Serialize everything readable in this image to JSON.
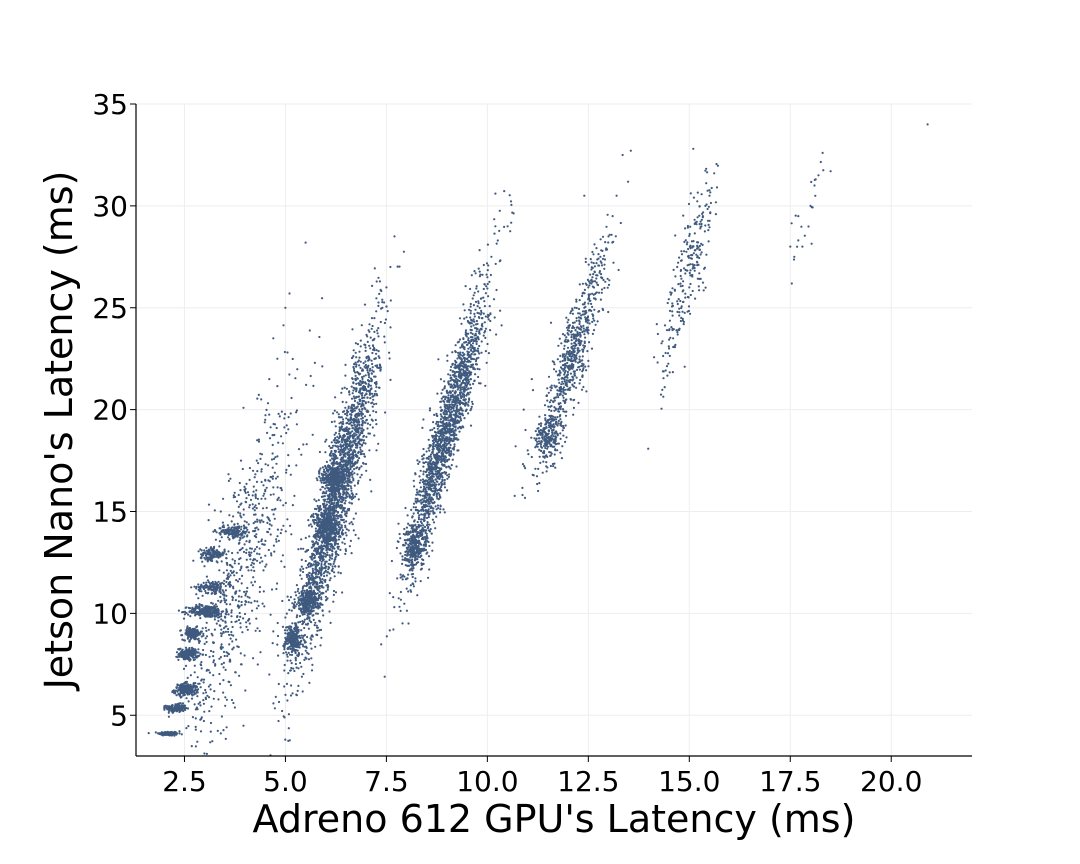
{
  "chart_data": {
    "type": "scatter",
    "title": "",
    "xlabel": "Adreno 612 GPU's Latency (ms)",
    "ylabel": "Jetson Nano's Latency (ms)",
    "xlim": [
      1.3,
      22.0
    ],
    "ylim": [
      3.0,
      35.0
    ],
    "xticks": [
      "2.5",
      "5.0",
      "7.5",
      "10.0",
      "12.5",
      "15.0",
      "17.5",
      "20.0"
    ],
    "yticks": [
      "5",
      "10",
      "15",
      "20",
      "25",
      "30",
      "35"
    ],
    "grid": true,
    "marker_color": "#3f5a7e",
    "series": [
      {
        "points": [
          [
            1.9,
            4.1
          ],
          [
            2.0,
            4.1
          ],
          [
            2.1,
            4.05
          ],
          [
            2.2,
            4.1
          ],
          [
            2.3,
            4.05
          ],
          [
            2.1,
            4.15
          ],
          [
            2.25,
            4.0
          ],
          [
            2.2,
            5.3
          ],
          [
            2.3,
            5.4
          ],
          [
            2.4,
            5.3
          ],
          [
            2.5,
            5.4
          ],
          [
            2.35,
            5.35
          ],
          [
            2.45,
            5.25
          ],
          [
            2.4,
            6.2
          ],
          [
            2.5,
            6.3
          ],
          [
            2.6,
            6.2
          ],
          [
            2.7,
            6.3
          ],
          [
            2.55,
            6.4
          ],
          [
            2.65,
            6.1
          ],
          [
            2.5,
            8.0
          ],
          [
            2.6,
            8.1
          ],
          [
            2.7,
            7.9
          ],
          [
            2.55,
            8.2
          ],
          [
            2.65,
            8.0
          ],
          [
            2.6,
            9.0
          ],
          [
            2.7,
            9.1
          ],
          [
            2.8,
            9.0
          ],
          [
            2.75,
            8.9
          ],
          [
            2.9,
            10.1
          ],
          [
            3.0,
            10.2
          ],
          [
            3.1,
            10.1
          ],
          [
            3.2,
            10.0
          ],
          [
            3.3,
            10.2
          ],
          [
            3.05,
            10.3
          ],
          [
            3.0,
            11.3
          ],
          [
            3.2,
            11.4
          ],
          [
            3.4,
            11.3
          ],
          [
            3.1,
            12.9
          ],
          [
            3.2,
            13.0
          ],
          [
            3.3,
            12.9
          ],
          [
            3.5,
            13.9
          ],
          [
            3.7,
            14.0
          ],
          [
            3.9,
            13.9
          ],
          [
            3.6,
            14.1
          ],
          [
            3.4,
            15.0
          ],
          [
            3.8,
            15.5
          ],
          [
            4.0,
            16.0
          ],
          [
            4.2,
            17.0
          ],
          [
            4.3,
            18.5
          ],
          [
            4.5,
            19.5
          ],
          [
            4.4,
            20.5
          ],
          [
            4.6,
            21.5
          ],
          [
            4.8,
            22.5
          ],
          [
            4.7,
            23.5
          ],
          [
            5.0,
            25.0
          ],
          [
            5.1,
            25.7
          ],
          [
            3.6,
            16.5
          ],
          [
            3.9,
            17.5
          ],
          [
            3.3,
            9.5
          ],
          [
            3.6,
            8.0
          ],
          [
            3.9,
            7.5
          ],
          [
            4.2,
            7.8
          ],
          [
            2.9,
            7.5
          ],
          [
            3.0,
            8.5
          ],
          [
            4.6,
            7.0
          ],
          [
            3.4,
            11.0
          ],
          [
            3.7,
            12.0
          ],
          [
            4.1,
            13.0
          ],
          [
            4.3,
            14.5
          ],
          [
            4.5,
            16.0
          ],
          [
            5.0,
            8.5
          ],
          [
            5.1,
            8.6
          ],
          [
            5.2,
            8.4
          ],
          [
            5.3,
            8.5
          ],
          [
            5.05,
            9.0
          ],
          [
            5.15,
            9.2
          ],
          [
            5.25,
            9.5
          ],
          [
            5.0,
            9.8
          ],
          [
            5.4,
            10.5
          ],
          [
            5.5,
            10.6
          ],
          [
            5.6,
            10.4
          ],
          [
            5.7,
            10.7
          ],
          [
            5.5,
            10.9
          ],
          [
            5.6,
            11.5
          ],
          [
            5.7,
            12.0
          ],
          [
            5.8,
            12.5
          ],
          [
            5.9,
            13.0
          ],
          [
            6.0,
            13.5
          ],
          [
            6.0,
            14.2
          ],
          [
            6.1,
            14.5
          ],
          [
            6.2,
            15.0
          ],
          [
            6.3,
            15.5
          ],
          [
            6.2,
            16.0
          ],
          [
            6.4,
            16.5
          ],
          [
            6.5,
            17.0
          ],
          [
            6.3,
            16.8
          ],
          [
            6.6,
            17.5
          ],
          [
            6.7,
            18.0
          ],
          [
            6.5,
            18.5
          ],
          [
            6.8,
            19.0
          ],
          [
            6.9,
            20.0
          ],
          [
            7.0,
            21.0
          ],
          [
            7.1,
            22.0
          ],
          [
            7.2,
            23.0
          ],
          [
            7.3,
            24.0
          ],
          [
            7.4,
            25.0
          ],
          [
            7.5,
            26.0
          ],
          [
            7.6,
            27.0
          ],
          [
            7.7,
            28.5
          ],
          [
            5.5,
            28.2
          ],
          [
            7.0,
            17.0
          ],
          [
            8.0,
            12.6
          ],
          [
            8.1,
            13.0
          ],
          [
            8.2,
            13.5
          ],
          [
            8.3,
            13.8
          ],
          [
            8.4,
            14.2
          ],
          [
            8.5,
            15.0
          ],
          [
            8.6,
            15.5
          ],
          [
            8.7,
            16.0
          ],
          [
            8.8,
            17.0
          ],
          [
            8.9,
            17.5
          ],
          [
            9.0,
            18.0
          ],
          [
            9.1,
            19.0
          ],
          [
            9.2,
            19.5
          ],
          [
            9.3,
            20.0
          ],
          [
            9.4,
            21.0
          ],
          [
            9.5,
            22.0
          ],
          [
            9.6,
            22.5
          ],
          [
            9.7,
            23.5
          ],
          [
            9.8,
            24.5
          ],
          [
            9.9,
            25.5
          ],
          [
            10.0,
            26.5
          ],
          [
            10.1,
            27.5
          ],
          [
            10.2,
            29.0
          ],
          [
            10.5,
            29.0
          ],
          [
            10.2,
            30.6
          ],
          [
            7.8,
            14.4
          ],
          [
            10.7,
            18.2
          ],
          [
            11.0,
            18.0
          ],
          [
            11.2,
            18.5
          ],
          [
            11.4,
            19.0
          ],
          [
            11.5,
            18.8
          ],
          [
            11.6,
            19.5
          ],
          [
            11.7,
            20.0
          ],
          [
            11.8,
            21.0
          ],
          [
            11.9,
            22.0
          ],
          [
            12.0,
            22.5
          ],
          [
            12.1,
            23.0
          ],
          [
            12.2,
            23.5
          ],
          [
            12.3,
            24.5
          ],
          [
            12.4,
            25.0
          ],
          [
            12.5,
            26.0
          ],
          [
            12.6,
            26.5
          ],
          [
            12.8,
            27.5
          ],
          [
            13.0,
            28.5
          ],
          [
            13.1,
            29.5
          ],
          [
            13.2,
            30.5
          ],
          [
            12.4,
            30.5
          ],
          [
            11.1,
            21.5
          ],
          [
            10.9,
            20.0
          ],
          [
            14.5,
            23.0
          ],
          [
            14.6,
            23.5
          ],
          [
            14.8,
            24.5
          ],
          [
            14.9,
            25.5
          ],
          [
            15.0,
            26.0
          ],
          [
            15.1,
            27.0
          ],
          [
            15.2,
            28.0
          ],
          [
            15.3,
            29.0
          ],
          [
            15.4,
            30.0
          ],
          [
            15.5,
            30.5
          ],
          [
            15.1,
            32.8
          ],
          [
            14.7,
            27.0
          ],
          [
            17.5,
            28.0
          ],
          [
            17.6,
            27.5
          ],
          [
            17.8,
            28.0
          ],
          [
            17.7,
            29.5
          ],
          [
            18.0,
            30.0
          ],
          [
            18.1,
            31.0
          ],
          [
            18.2,
            31.5
          ],
          [
            18.3,
            32.6
          ],
          [
            18.5,
            31.7
          ],
          [
            20.9,
            34.0
          ]
        ],
        "generated_cloud": [
          {
            "cx": 2.1,
            "cy": 4.1,
            "sx": 0.12,
            "sy": 0.05,
            "n": 160
          },
          {
            "cx": 2.3,
            "cy": 5.35,
            "sx": 0.12,
            "sy": 0.1,
            "n": 160
          },
          {
            "cx": 2.55,
            "cy": 6.25,
            "sx": 0.15,
            "sy": 0.15,
            "n": 200
          },
          {
            "cx": 2.6,
            "cy": 8.0,
            "sx": 0.12,
            "sy": 0.15,
            "n": 160
          },
          {
            "cx": 2.7,
            "cy": 9.0,
            "sx": 0.12,
            "sy": 0.15,
            "n": 160
          },
          {
            "cx": 3.05,
            "cy": 10.1,
            "sx": 0.22,
            "sy": 0.15,
            "n": 260
          },
          {
            "cx": 3.2,
            "cy": 11.3,
            "sx": 0.2,
            "sy": 0.15,
            "n": 120
          },
          {
            "cx": 3.2,
            "cy": 12.9,
            "sx": 0.15,
            "sy": 0.15,
            "n": 140
          },
          {
            "cx": 3.7,
            "cy": 14.0,
            "sx": 0.2,
            "sy": 0.15,
            "n": 140
          },
          {
            "cx": 3.9,
            "cy": 12.0,
            "sx": 0.7,
            "sy": 4.5,
            "n": 700,
            "corr": 0.8
          },
          {
            "cx": 5.2,
            "cy": 8.7,
            "sx": 0.12,
            "sy": 0.4,
            "n": 240
          },
          {
            "cx": 5.55,
            "cy": 10.6,
            "sx": 0.15,
            "sy": 0.25,
            "n": 260
          },
          {
            "cx": 6.3,
            "cy": 16.0,
            "sx": 0.5,
            "sy": 3.8,
            "n": 2200,
            "corr": 0.9
          },
          {
            "cx": 6.2,
            "cy": 16.7,
            "sx": 0.15,
            "sy": 0.3,
            "n": 300
          },
          {
            "cx": 6.0,
            "cy": 14.3,
            "sx": 0.15,
            "sy": 0.4,
            "n": 300
          },
          {
            "cx": 8.2,
            "cy": 13.3,
            "sx": 0.15,
            "sy": 0.5,
            "n": 240
          },
          {
            "cx": 9.0,
            "cy": 19.0,
            "sx": 0.5,
            "sy": 3.5,
            "n": 1800,
            "corr": 0.93
          },
          {
            "cx": 11.5,
            "cy": 18.6,
            "sx": 0.15,
            "sy": 0.5,
            "n": 160
          },
          {
            "cx": 12.1,
            "cy": 22.5,
            "sx": 0.45,
            "sy": 2.8,
            "n": 700,
            "corr": 0.9
          },
          {
            "cx": 15.0,
            "cy": 26.8,
            "sx": 0.35,
            "sy": 2.5,
            "n": 250,
            "corr": 0.85
          },
          {
            "cx": 17.9,
            "cy": 29.6,
            "sx": 0.25,
            "sy": 1.5,
            "n": 18,
            "corr": 0.8
          }
        ]
      }
    ]
  }
}
